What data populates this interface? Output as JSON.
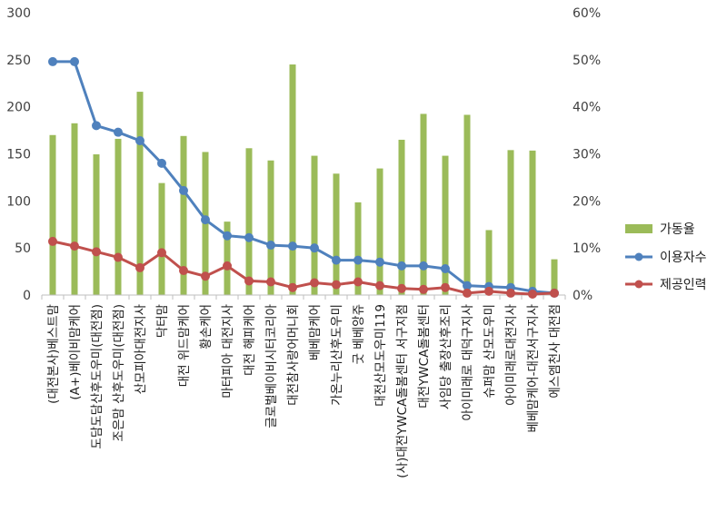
{
  "chart_data": {
    "type": "bar",
    "categories": [
      "(대전본사)베스트맘",
      "(A+)베이비맘케어",
      "도담도담산후도우미(대전점)",
      "조은맘 산후도우미(대전점)",
      "산모피아대전지사",
      "닥터맘",
      "대전 위드맘케어",
      "황손케어",
      "마터피아 대전지사",
      "대전 해피케어",
      "글로벌베이비시터코리아",
      "대전참사랑어머니회",
      "베베맘케어",
      "가온누리산후도우미",
      "굿 베베앙쥬",
      "대전산모도우미119",
      "(사)대전YWCA돌봄센터 서구지점",
      "대전YWCA돌봄센터",
      "사임당 출장산후조리",
      "아이미래로 대덕구지사",
      "슈퍼맘 산모도우미",
      "아이미래로대전지사",
      "베베맘케어-대전서구지사",
      "에스엠천사 대전점"
    ],
    "series": [
      {
        "name": "가동율",
        "type": "bar",
        "axis": "right",
        "unit": "%",
        "color": "#9bbb59",
        "values": [
          34.0,
          36.5,
          29.9,
          33.2,
          43.2,
          23.8,
          33.8,
          30.4,
          15.6,
          31.2,
          28.6,
          49.0,
          29.6,
          25.8,
          19.7,
          26.9,
          33.0,
          38.5,
          29.6,
          38.3,
          13.8,
          30.8,
          30.7,
          7.6
        ]
      },
      {
        "name": "이용자수",
        "type": "line",
        "axis": "left",
        "color": "#4f81bd",
        "values": [
          248,
          248,
          180,
          173,
          164,
          140,
          111,
          80,
          63,
          61,
          53,
          52,
          50,
          37,
          37,
          35,
          31,
          31,
          28,
          10,
          9,
          8,
          4,
          2
        ]
      },
      {
        "name": "제공인력",
        "type": "line",
        "axis": "left",
        "color": "#c0504d",
        "values": [
          57,
          52,
          46,
          40,
          29,
          45,
          26,
          20,
          31,
          15,
          14,
          8,
          13,
          11,
          14,
          10,
          7,
          6,
          8,
          2,
          4,
          2,
          1,
          2
        ]
      }
    ],
    "y_left": {
      "min": 0,
      "max": 300,
      "ticks": [
        0,
        50,
        100,
        150,
        200,
        250,
        300
      ]
    },
    "y_right": {
      "min": 0,
      "max": 60,
      "ticks": [
        "0%",
        "10%",
        "20%",
        "30%",
        "40%",
        "50%",
        "60%"
      ]
    },
    "legend_position": "right",
    "grid": false
  }
}
